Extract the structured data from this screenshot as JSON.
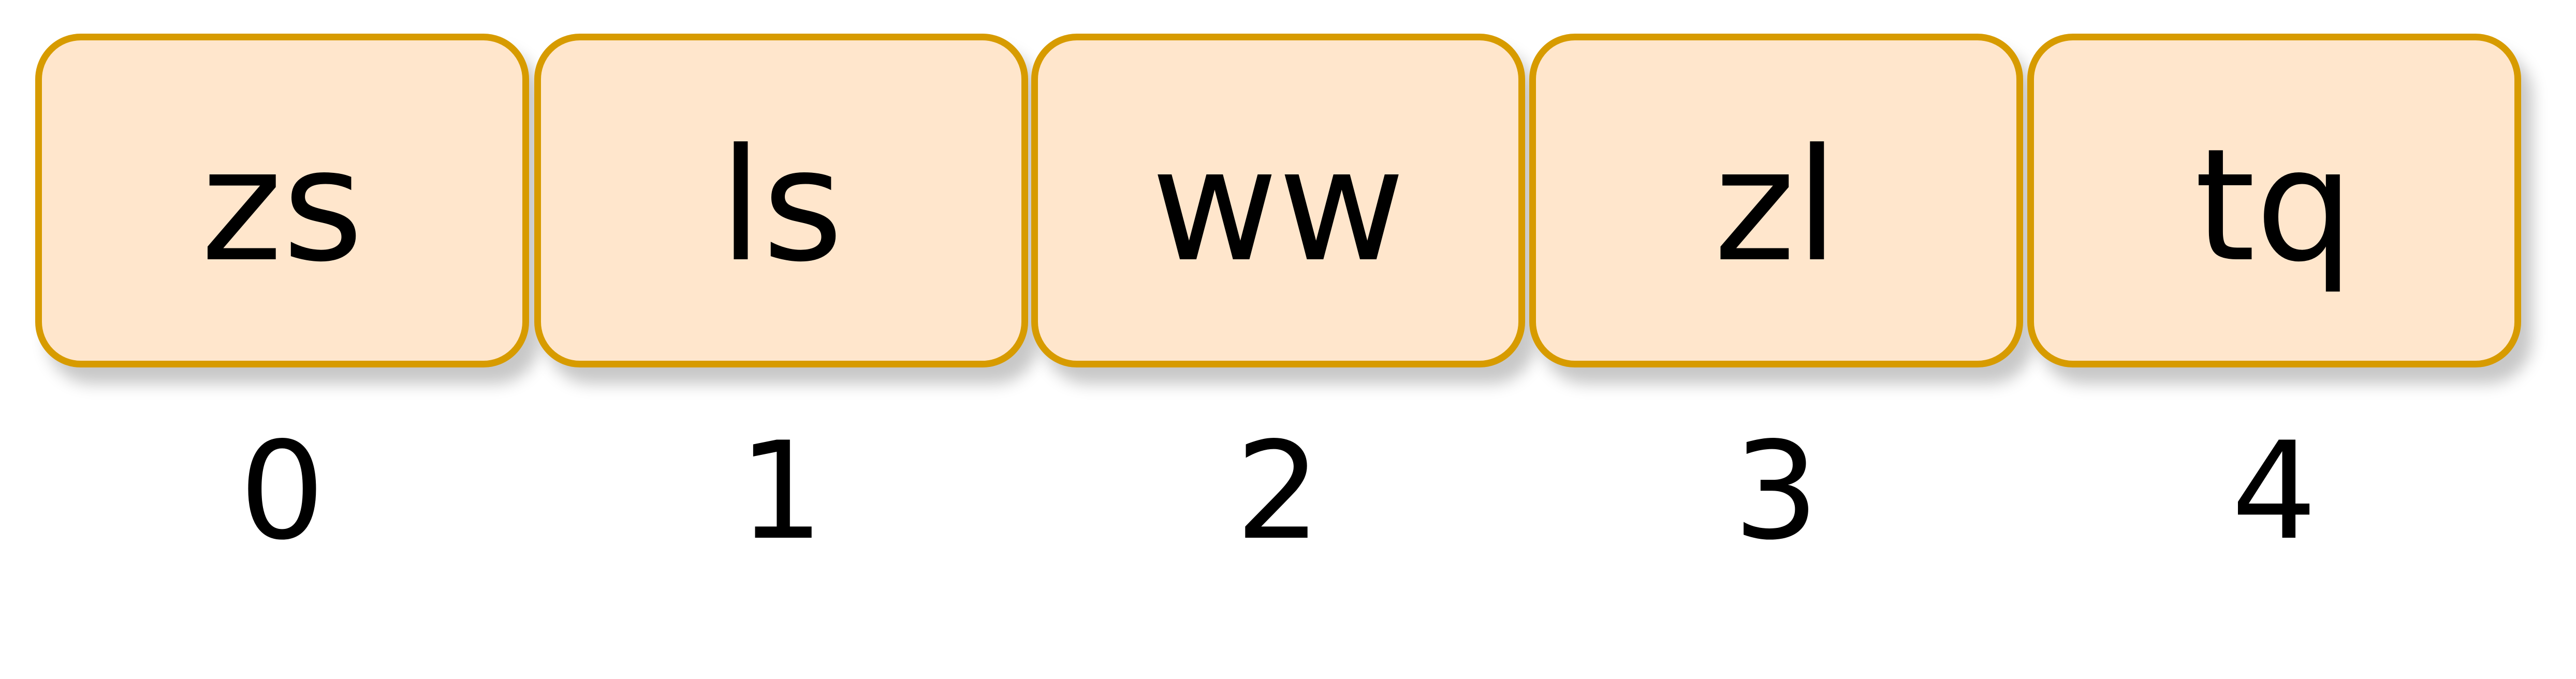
{
  "cells": [
    {
      "label": "zs",
      "index": "0"
    },
    {
      "label": "ls",
      "index": "1"
    },
    {
      "label": "ww",
      "index": "2"
    },
    {
      "label": "zl",
      "index": "3"
    },
    {
      "label": "tq",
      "index": "4"
    }
  ],
  "colors": {
    "cell_fill": "#ffe6cc",
    "cell_border": "#d79b00",
    "text": "#000000",
    "background": "#ffffff"
  }
}
